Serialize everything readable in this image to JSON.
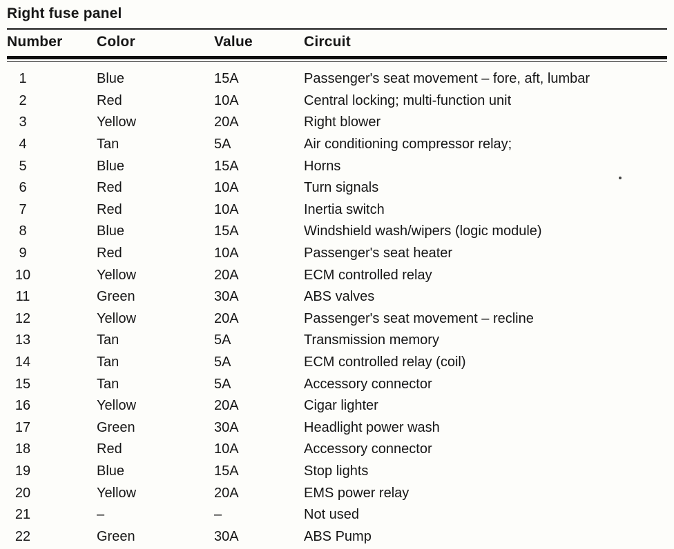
{
  "page": {
    "title": "Right fuse panel"
  },
  "table": {
    "headers": {
      "number": "Number",
      "color": "Color",
      "value": "Value",
      "circuit": "Circuit"
    },
    "rows": [
      {
        "number": "1",
        "color": "Blue",
        "value": "15A",
        "circuit": "Passenger's seat movement – fore, aft, lumbar"
      },
      {
        "number": "2",
        "color": "Red",
        "value": "10A",
        "circuit": "Central locking; multi-function unit"
      },
      {
        "number": "3",
        "color": "Yellow",
        "value": "20A",
        "circuit": "Right blower"
      },
      {
        "number": "4",
        "color": "Tan",
        "value": "5A",
        "circuit": "Air conditioning compressor relay;"
      },
      {
        "number": "5",
        "color": "Blue",
        "value": "15A",
        "circuit": "Horns"
      },
      {
        "number": "6",
        "color": "Red",
        "value": "10A",
        "circuit": "Turn signals"
      },
      {
        "number": "7",
        "color": "Red",
        "value": "10A",
        "circuit": "Inertia switch"
      },
      {
        "number": "8",
        "color": "Blue",
        "value": "15A",
        "circuit": "Windshield wash/wipers (logic module)"
      },
      {
        "number": "9",
        "color": "Red",
        "value": "10A",
        "circuit": "Passenger's seat heater"
      },
      {
        "number": "10",
        "color": "Yellow",
        "value": "20A",
        "circuit": "ECM controlled relay"
      },
      {
        "number": "11",
        "color": "Green",
        "value": "30A",
        "circuit": "ABS valves"
      },
      {
        "number": "12",
        "color": "Yellow",
        "value": "20A",
        "circuit": "Passenger's seat movement – recline"
      },
      {
        "number": "13",
        "color": "Tan",
        "value": "5A",
        "circuit": "Transmission memory"
      },
      {
        "number": "14",
        "color": "Tan",
        "value": "5A",
        "circuit": "ECM controlled relay (coil)"
      },
      {
        "number": "15",
        "color": "Tan",
        "value": "5A",
        "circuit": "Accessory connector"
      },
      {
        "number": "16",
        "color": "Yellow",
        "value": "20A",
        "circuit": "Cigar lighter"
      },
      {
        "number": "17",
        "color": "Green",
        "value": "30A",
        "circuit": "Headlight power wash"
      },
      {
        "number": "18",
        "color": "Red",
        "value": "10A",
        "circuit": "Accessory connector"
      },
      {
        "number": "19",
        "color": "Blue",
        "value": "15A",
        "circuit": "Stop lights"
      },
      {
        "number": "20",
        "color": "Yellow",
        "value": "20A",
        "circuit": "EMS power relay"
      },
      {
        "number": "21",
        "color": "–",
        "value": "–",
        "circuit": "Not used"
      },
      {
        "number": "22",
        "color": "Green",
        "value": "30A",
        "circuit": "ABS Pump"
      }
    ]
  }
}
